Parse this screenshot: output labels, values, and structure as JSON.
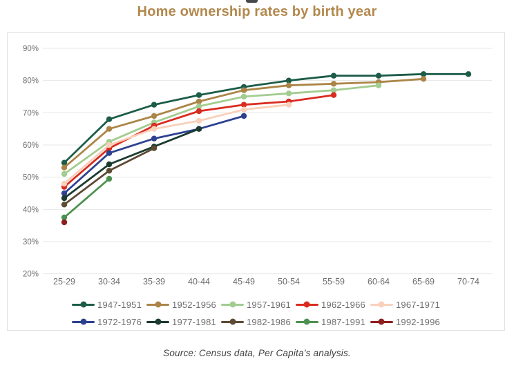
{
  "header": {
    "title": "Home ownership rates by birth year"
  },
  "footer": {
    "source": "Source: Census data, Per Capita’s analysis."
  },
  "colors": {
    "title_text": "#b2884c",
    "axis_text": "#6d6e71",
    "legend_text": "#6d6e71",
    "gridline": "#e7e7e7",
    "panel_border": "#e0e0e0"
  },
  "chart_data": {
    "type": "line",
    "title": "Home ownership rates by birth year",
    "xlabel": "",
    "ylabel": "",
    "categories": [
      "25-29",
      "30-34",
      "35-39",
      "40-44",
      "45-49",
      "50-54",
      "55-59",
      "60-64",
      "65-69",
      "70-74"
    ],
    "y_tick_labels": [
      "90%",
      "80%",
      "70%",
      "60%",
      "50%",
      "40%",
      "30%",
      "20%"
    ],
    "y_tick_values": [
      90,
      80,
      70,
      60,
      50,
      40,
      30,
      20
    ],
    "ylim": [
      20,
      90
    ],
    "grid": true,
    "legend_position": "bottom",
    "marker": "circle",
    "series": [
      {
        "name": "1947-1951",
        "color": "#1c5c49",
        "values": [
          54.5,
          68,
          72.5,
          75.5,
          78,
          80,
          81.5,
          81.5,
          82,
          82
        ]
      },
      {
        "name": "1952-1956",
        "color": "#ab8547",
        "values": [
          53,
          65,
          69,
          73.5,
          77,
          78.5,
          79,
          79.5,
          80.5
        ]
      },
      {
        "name": "1957-1961",
        "color": "#a2cc90",
        "values": [
          51,
          61,
          67,
          72,
          75,
          76,
          77,
          78.5
        ]
      },
      {
        "name": "1962-1966",
        "color": "#da2b20",
        "values": [
          47,
          59,
          66,
          70.5,
          72.5,
          73.5,
          75.5
        ]
      },
      {
        "name": "1967-1971",
        "color": "#f9d0ba",
        "values": [
          48,
          60,
          65,
          67.5,
          71,
          72.5
        ]
      },
      {
        "name": "1972-1976",
        "color": "#2d4191",
        "values": [
          45,
          57.5,
          62,
          65,
          69
        ]
      },
      {
        "name": "1977-1981",
        "color": "#1b3b2f",
        "values": [
          43.5,
          54,
          59.5,
          65
        ]
      },
      {
        "name": "1982-1986",
        "color": "#5e4b34",
        "values": [
          41.5,
          52,
          59
        ]
      },
      {
        "name": "1987-1991",
        "color": "#4d9150",
        "values": [
          37.5,
          49.5
        ]
      },
      {
        "name": "1992-1996",
        "color": "#8e1f1f",
        "values": [
          36
        ]
      }
    ]
  }
}
